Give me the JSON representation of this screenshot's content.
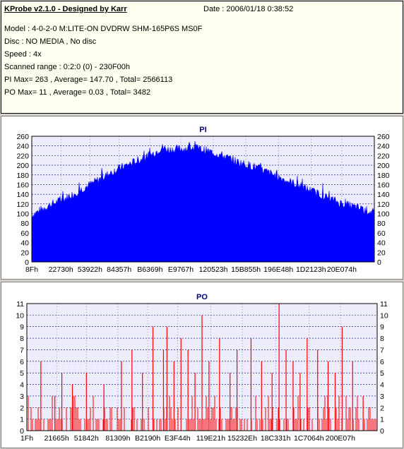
{
  "info": {
    "app_title": "KProbe v2.1.0 - Designed by Karr",
    "date": "Date : 2006/01/18 0:38:52",
    "model": "Model : 4-0-2-0 M:LITE-ON DVDRW SHM-165P6S MS0F",
    "disc": "Disc : NO MEDIA , No disc",
    "speed": "Speed : 4x",
    "scanned_range": "Scanned range : 0:2:0 (0) - 230F00h",
    "pi_stats": "PI Max= 263 , Average= 147.70 , Total= 2566113",
    "po_stats": "PO Max= 11 , Average= 0.03 , Total= 3482"
  },
  "colors": {
    "pi": "#0000ff",
    "po": "#ff0000",
    "plot_bg": "#ececfc",
    "grid": "#000080"
  },
  "chart_data": [
    {
      "type": "area",
      "title": "PI",
      "ylim": [
        0,
        260
      ],
      "y_ticks": [
        0,
        20,
        40,
        60,
        80,
        100,
        120,
        140,
        160,
        180,
        200,
        220,
        240,
        260
      ],
      "x_tick_labels": [
        "8Fh",
        "22730h",
        "53922h",
        "84357h",
        "B6369h",
        "E9767h",
        "120523h",
        "15B855h",
        "196E48h",
        "1D2123h",
        "20E074h"
      ],
      "x_tick_fraction": [
        0.0,
        0.085,
        0.17,
        0.255,
        0.345,
        0.435,
        0.53,
        0.625,
        0.72,
        0.815,
        0.905
      ],
      "envelope_x_fraction": [
        0.0,
        0.05,
        0.1,
        0.15,
        0.2,
        0.25,
        0.3,
        0.35,
        0.38,
        0.4,
        0.45,
        0.47,
        0.5,
        0.55,
        0.6,
        0.65,
        0.7,
        0.75,
        0.8,
        0.85,
        0.9,
        0.95,
        1.0
      ],
      "envelope_values": [
        100,
        120,
        135,
        155,
        175,
        195,
        210,
        225,
        240,
        235,
        238,
        240,
        235,
        225,
        210,
        200,
        185,
        170,
        155,
        140,
        125,
        115,
        105
      ],
      "max": 263,
      "average": 147.7
    },
    {
      "type": "bar",
      "title": "PO",
      "ylim": [
        0,
        11
      ],
      "y_ticks": [
        0,
        1,
        2,
        3,
        4,
        5,
        6,
        7,
        8,
        9,
        10,
        11
      ],
      "x_tick_labels": [
        "1Fh",
        "21665h",
        "51842h",
        "81309h",
        "B2190h",
        "E3F44h",
        "119E21h",
        "15232Eh",
        "18C331h",
        "1C7064h",
        "200E07h"
      ],
      "x_tick_fraction": [
        0.0,
        0.085,
        0.17,
        0.26,
        0.345,
        0.43,
        0.525,
        0.615,
        0.71,
        0.805,
        0.895
      ],
      "spikes_x_fraction": [
        0.04,
        0.08,
        0.1,
        0.13,
        0.17,
        0.22,
        0.27,
        0.3,
        0.33,
        0.36,
        0.39,
        0.4,
        0.42,
        0.44,
        0.46,
        0.48,
        0.5,
        0.52,
        0.55,
        0.58,
        0.6,
        0.64,
        0.67,
        0.7,
        0.72,
        0.74,
        0.76,
        0.78,
        0.8,
        0.83,
        0.86,
        0.88,
        0.9,
        0.93,
        0.96
      ],
      "spikes_values": [
        6,
        3,
        5,
        4,
        5,
        4,
        6,
        7,
        5,
        9,
        7,
        9,
        6,
        8,
        7,
        5,
        10,
        6,
        8,
        5,
        7,
        8,
        6,
        5,
        11,
        7,
        6,
        5,
        8,
        7,
        6,
        5,
        9,
        6,
        3
      ],
      "max": 11,
      "average": 0.03
    }
  ]
}
